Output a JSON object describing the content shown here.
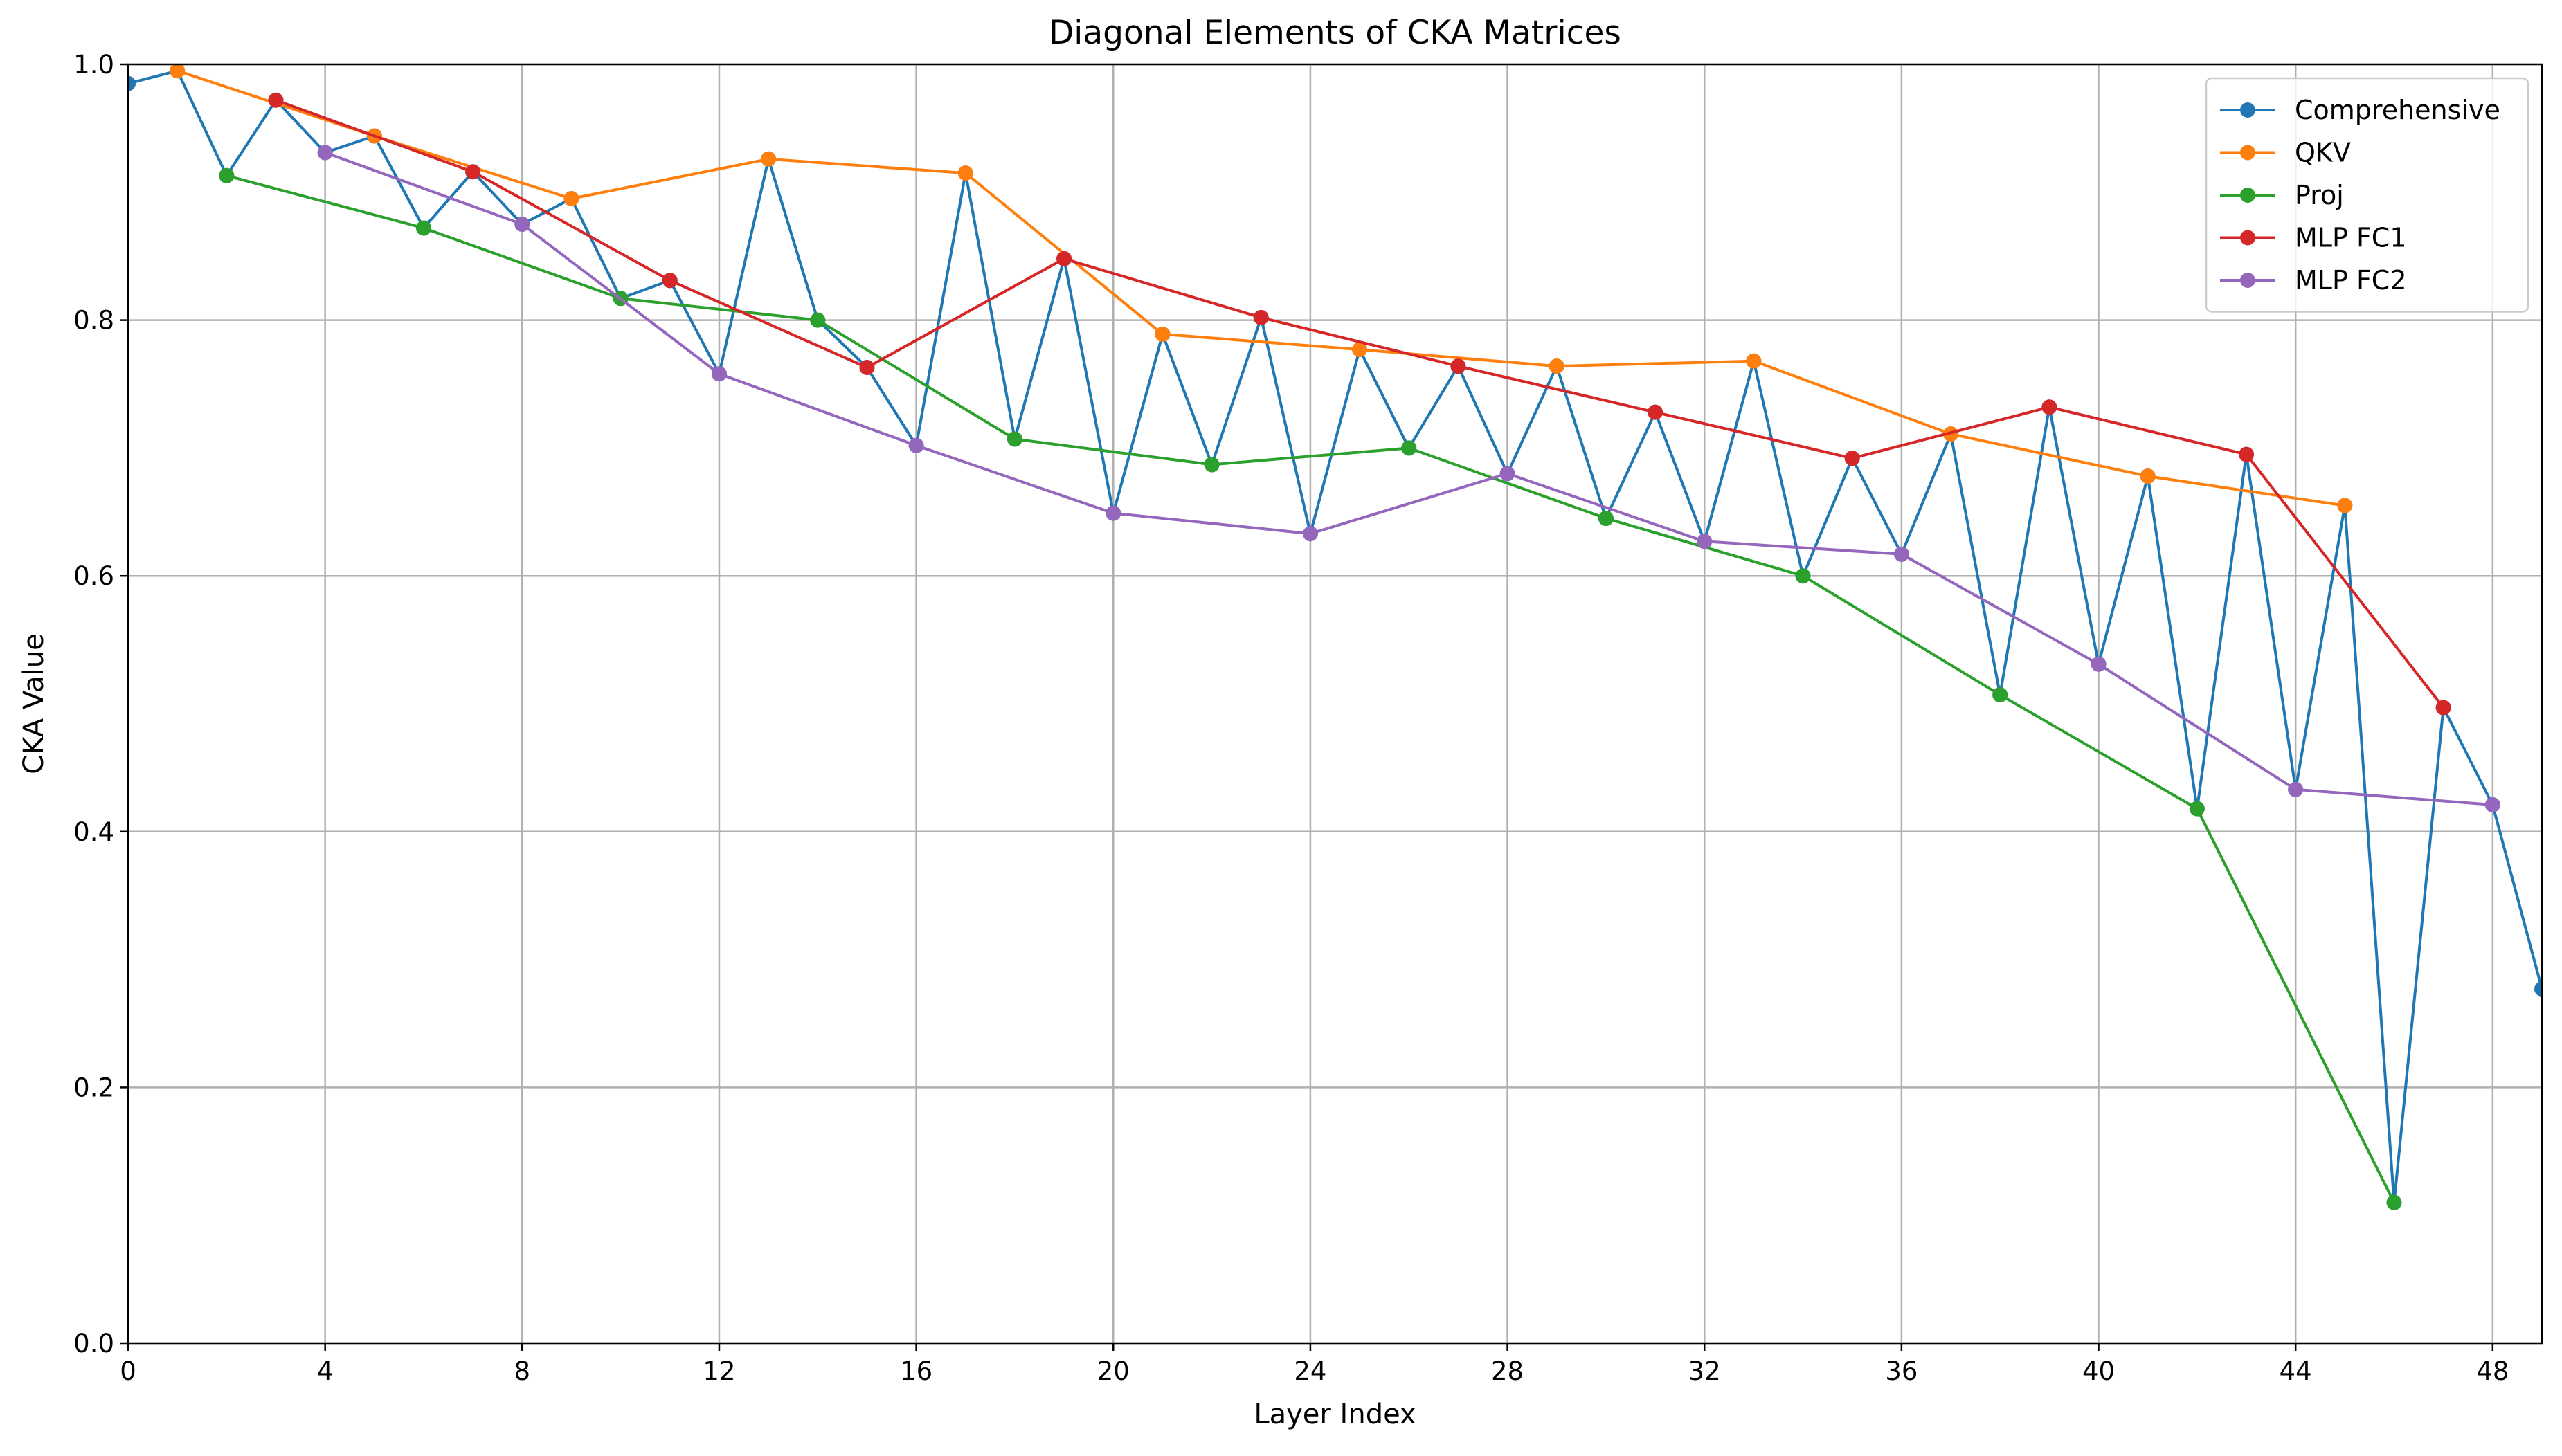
{
  "chart_data": {
    "type": "line",
    "title": "Diagonal Elements of CKA Matrices",
    "xlabel": "Layer Index",
    "ylabel": "CKA Value",
    "xlim": [
      0,
      49
    ],
    "ylim": [
      0,
      1.0
    ],
    "xticks": [
      0,
      4,
      8,
      12,
      16,
      20,
      24,
      28,
      32,
      36,
      40,
      44,
      48
    ],
    "yticks": [
      0.0,
      0.2,
      0.4,
      0.6,
      0.8,
      1.0
    ],
    "xtick_labels": [
      "0",
      "4",
      "8",
      "12",
      "16",
      "20",
      "24",
      "28",
      "32",
      "36",
      "40",
      "44",
      "48"
    ],
    "ytick_labels": [
      "0.0",
      "0.2",
      "0.4",
      "0.6",
      "0.8",
      "1.0"
    ],
    "grid": true,
    "legend_position": "top-right",
    "series": [
      {
        "name": "Comprehensive",
        "color": "#1f77b4",
        "x": [
          0,
          1,
          2,
          3,
          4,
          5,
          6,
          7,
          8,
          9,
          10,
          11,
          12,
          13,
          14,
          15,
          16,
          17,
          18,
          19,
          20,
          21,
          22,
          23,
          24,
          25,
          26,
          27,
          28,
          29,
          30,
          31,
          32,
          33,
          34,
          35,
          36,
          37,
          38,
          39,
          40,
          41,
          42,
          43,
          44,
          45,
          46,
          47,
          48,
          49
        ],
        "y": [
          0.985,
          0.995,
          0.913,
          0.972,
          0.931,
          0.944,
          0.872,
          0.916,
          0.875,
          0.895,
          0.817,
          0.831,
          0.758,
          0.926,
          0.8,
          0.763,
          0.702,
          0.915,
          0.707,
          0.848,
          0.649,
          0.789,
          0.687,
          0.802,
          0.633,
          0.777,
          0.7,
          0.764,
          0.68,
          0.764,
          0.645,
          0.728,
          0.627,
          0.768,
          0.6,
          0.692,
          0.617,
          0.711,
          0.507,
          0.732,
          0.531,
          0.678,
          0.418,
          0.695,
          0.433,
          0.655,
          0.11,
          0.497,
          0.421,
          0.277
        ]
      },
      {
        "name": "QKV",
        "color": "#ff7f0e",
        "x": [
          1,
          5,
          9,
          13,
          17,
          21,
          25,
          29,
          33,
          37,
          41,
          45
        ],
        "y": [
          0.995,
          0.944,
          0.895,
          0.926,
          0.915,
          0.789,
          0.777,
          0.764,
          0.768,
          0.711,
          0.678,
          0.655
        ]
      },
      {
        "name": "Proj",
        "color": "#2ca02c",
        "x": [
          2,
          6,
          10,
          14,
          18,
          22,
          26,
          30,
          34,
          38,
          42,
          46
        ],
        "y": [
          0.913,
          0.872,
          0.817,
          0.8,
          0.707,
          0.687,
          0.7,
          0.645,
          0.6,
          0.507,
          0.418,
          0.11
        ]
      },
      {
        "name": "MLP FC1",
        "color": "#d62728",
        "x": [
          3,
          7,
          11,
          15,
          19,
          23,
          27,
          31,
          35,
          39,
          43,
          47
        ],
        "y": [
          0.972,
          0.916,
          0.831,
          0.763,
          0.848,
          0.802,
          0.764,
          0.728,
          0.692,
          0.732,
          0.695,
          0.497
        ]
      },
      {
        "name": "MLP FC2",
        "color": "#9467bd",
        "x": [
          4,
          8,
          12,
          16,
          20,
          24,
          28,
          32,
          36,
          40,
          44,
          48
        ],
        "y": [
          0.931,
          0.875,
          0.758,
          0.702,
          0.649,
          0.633,
          0.68,
          0.627,
          0.617,
          0.531,
          0.433,
          0.421
        ]
      }
    ]
  }
}
